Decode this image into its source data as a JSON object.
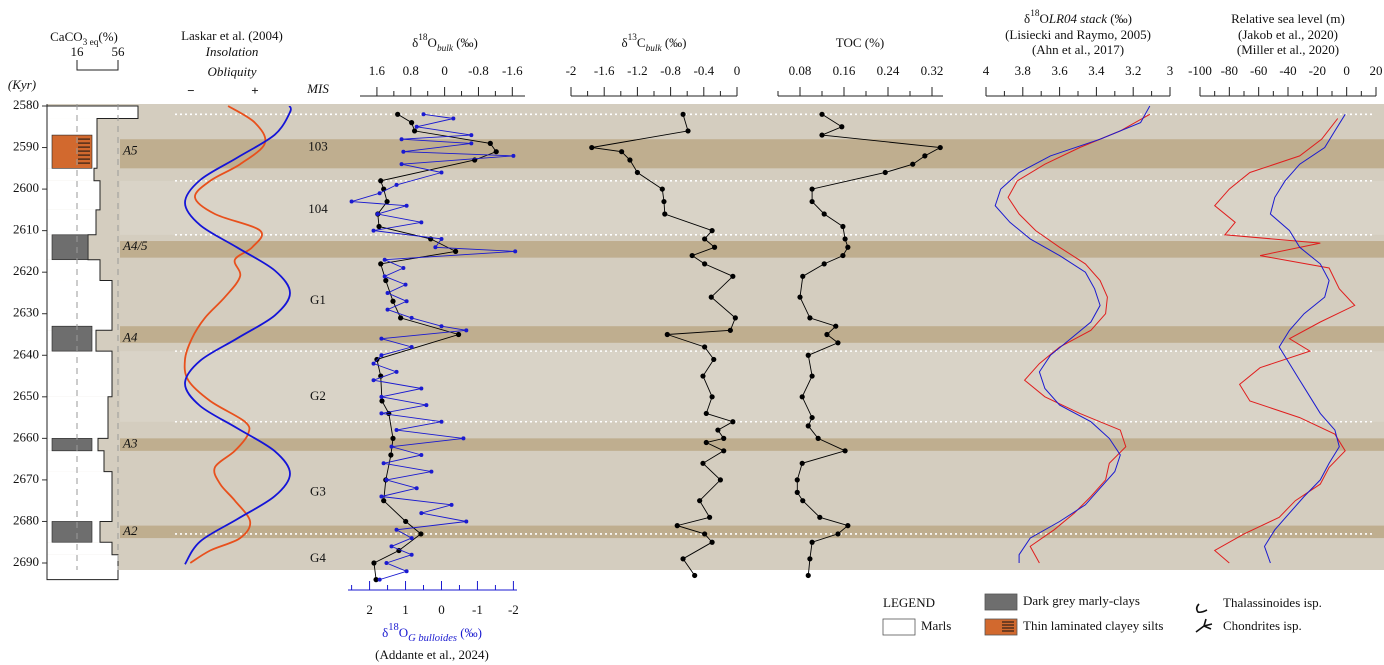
{
  "depth_axis": {
    "label": "(Kyr)",
    "ylim": [
      2580,
      2690
    ],
    "yticks": [
      2580,
      2590,
      2600,
      2610,
      2620,
      2630,
      2640,
      2650,
      2660,
      2670,
      2680,
      2690
    ]
  },
  "highlight_intervals": [
    [
      2588,
      2595
    ],
    [
      2612.5,
      2616.5
    ],
    [
      2633,
      2637
    ],
    [
      2660,
      2663
    ],
    [
      2681,
      2684
    ]
  ],
  "highlight_color": "#b8a37f",
  "mis": {
    "label": "MIS",
    "boundaries": [
      2582,
      2598,
      2611,
      2639,
      2656,
      2683
    ],
    "stages": [
      {
        "name": "103",
        "depth": 2590
      },
      {
        "name": "104",
        "depth": 2605
      },
      {
        "name": "G1",
        "depth": 2627
      },
      {
        "name": "G2",
        "depth": 2650
      },
      {
        "name": "G3",
        "depth": 2673
      },
      {
        "name": "G4",
        "depth": 2689
      }
    ]
  },
  "chart_data": [
    {
      "type": "lithology",
      "title": [
        {
          "text": "CaCO"
        },
        {
          "text": "3 eq",
          "style": "sub"
        },
        {
          "text": "(%)"
        }
      ],
      "xlim": [
        16,
        56
      ],
      "xticks": [
        16,
        56
      ],
      "depth_bins": [
        2580,
        2583,
        2595,
        2598,
        2605,
        2611,
        2617,
        2622,
        2634,
        2639,
        2650,
        2660,
        2663,
        2668,
        2680,
        2685,
        2688,
        2694
      ],
      "values": [
        75.5,
        35.5,
        32.6,
        38.4,
        34.5,
        26.7,
        38.4,
        50.1,
        34.5,
        50.1,
        46.2,
        36.5,
        42.3,
        50.1,
        38.4,
        50.1,
        56
      ],
      "dark_grey_layers": [
        {
          "from": 2611,
          "to": 2617,
          "label": "A4/5"
        },
        {
          "from": 2633,
          "to": 2639,
          "label": "A4"
        },
        {
          "from": 2660,
          "to": 2663,
          "label": "A3"
        },
        {
          "from": 2680,
          "to": 2685,
          "label": "A2"
        }
      ],
      "laminated_layers": [
        {
          "from": 2587,
          "to": 2595,
          "label": "A5"
        }
      ]
    },
    {
      "type": "orbital",
      "title": "Laskar et al. (2004)",
      "minus": "−",
      "plus": "+",
      "xlim": [
        -1,
        1
      ],
      "series": [
        {
          "name": "Insolation",
          "color": "#e8501c",
          "depth": [
            2580,
            2584,
            2589,
            2594,
            2598,
            2602,
            2606,
            2610,
            2614,
            2617,
            2621,
            2626,
            2631,
            2636,
            2641,
            2646,
            2651,
            2656,
            2659,
            2663,
            2667,
            2671,
            2675,
            2680,
            2684,
            2687,
            2690
          ],
          "values": [
            -0.18,
            0.33,
            0.52,
            0.05,
            -0.52,
            -0.81,
            -0.43,
            0.43,
            0.28,
            -0.05,
            0.05,
            -0.24,
            -0.62,
            -0.87,
            -1,
            -0.94,
            -0.52,
            0.14,
            0.2,
            -0.05,
            -0.43,
            -0.33,
            -0.05,
            0.24,
            0.05,
            -0.52,
            -0.9
          ]
        },
        {
          "name": "Obliquity",
          "color": "#1414d8",
          "depth": [
            2580,
            2581.5,
            2586.9,
            2592.4,
            2597.8,
            2603.3,
            2608.7,
            2614.1,
            2619.6,
            2625,
            2630.4,
            2635.9,
            2641.3,
            2646.8,
            2652.2,
            2657.6,
            2663.1,
            2668.5,
            2673.9,
            2679.4,
            2684.8,
            2690.3
          ],
          "values": [
            0.99,
            1,
            0.71,
            0,
            -0.71,
            -1,
            -0.71,
            0,
            0.71,
            1,
            0.71,
            0,
            -0.71,
            -1,
            -0.71,
            0,
            0.71,
            1,
            0.71,
            0,
            -0.71,
            -1
          ]
        }
      ]
    },
    {
      "type": "line",
      "title": [
        {
          "text": "δ"
        },
        {
          "text": "18",
          "style": "sup"
        },
        {
          "text": "O"
        },
        {
          "text": "bulk",
          "style": "sub",
          "italic": true
        },
        {
          "text": " (‰)"
        }
      ],
      "xlim": [
        2,
        -1.9
      ],
      "xticks": [
        1.6,
        0.8,
        0,
        -0.8,
        -1.6
      ],
      "xminorticks": [
        1.2,
        0.4,
        -0.4,
        -1.2
      ],
      "x2label": [
        {
          "text": "δ"
        },
        {
          "text": "18",
          "style": "sup"
        },
        {
          "text": "O"
        },
        {
          "text": "G bulloides",
          "style": "sub",
          "italic": true
        },
        {
          "text": " (‰)"
        }
      ],
      "x2lim": [
        2.6,
        -2.1
      ],
      "x2ticks": [
        2,
        1,
        0,
        -1,
        -2
      ],
      "x2minorticks": [
        2.5,
        1.5,
        0.5,
        -0.5,
        -1.5
      ],
      "series": [
        {
          "color": "#000000",
          "markers": true,
          "depth": [
            2582,
            2584,
            2586,
            2589,
            2591,
            2593,
            2598,
            2600,
            2603,
            2606,
            2609,
            2612,
            2615,
            2618,
            2622,
            2627,
            2631,
            2635,
            2641,
            2645,
            2651,
            2654,
            2660,
            2664,
            2670,
            2675,
            2680,
            2683,
            2687,
            2690,
            2694
          ],
          "values": [
            1.11,
            0.78,
            0.71,
            -1.08,
            -1.22,
            -0.71,
            1.51,
            1.44,
            1.36,
            1.58,
            1.55,
            0.33,
            -0.26,
            1.51,
            1.39,
            1.22,
            1.04,
            -0.33,
            1.6,
            1.51,
            1.48,
            1.32,
            1.22,
            1.27,
            1.39,
            1.44,
            0.92,
            0.56,
            1.08,
            1.67,
            1.62
          ]
        },
        {
          "name": "(Addante et al., 2024)",
          "color": "#1a1ad0",
          "markers": true,
          "axis": "x2",
          "depth": [
            2582,
            2583,
            2585,
            2587,
            2588,
            2589,
            2591,
            2592,
            2594,
            2596,
            2599,
            2601,
            2603,
            2604,
            2606,
            2608,
            2610,
            2612,
            2614,
            2615,
            2617,
            2619,
            2621,
            2623,
            2625,
            2627,
            2629,
            2631,
            2633,
            2634,
            2636,
            2638,
            2640,
            2642,
            2644,
            2646,
            2648,
            2650,
            2652,
            2654,
            2656,
            2658,
            2660,
            2662,
            2664,
            2666,
            2668,
            2670,
            2672,
            2674,
            2676,
            2678,
            2680,
            2682,
            2684,
            2686,
            2688,
            2690,
            2692,
            2694
          ],
          "values": [
            0.5,
            -0.33,
            0.69,
            -0.83,
            1.11,
            -0.83,
            1.06,
            -2.0,
            1.11,
            0,
            1.25,
            1.72,
            2.5,
            0.97,
            1.78,
            0.56,
            1.89,
            0,
            0.17,
            -2.05,
            1.58,
            1.06,
            1.58,
            1.0,
            1.5,
            0.97,
            1.5,
            0.83,
            0,
            -0.69,
            1.67,
            0.83,
            1.67,
            1.89,
            1.25,
            1.89,
            0.56,
            1.67,
            0.42,
            1.67,
            0,
            1.25,
            -0.61,
            1.39,
            0.56,
            1.61,
            0.28,
            1.53,
            0.69,
            1.67,
            -0.28,
            0.56,
            -0.69,
            1.25,
            0.83,
            1.39,
            0.83,
            1.53,
            0.97,
            1.72
          ]
        }
      ]
    },
    {
      "type": "line",
      "title": [
        {
          "text": "δ"
        },
        {
          "text": "13",
          "style": "sup"
        },
        {
          "text": "C"
        },
        {
          "text": "bulk",
          "style": "sub",
          "italic": true
        },
        {
          "text": " (‰)"
        }
      ],
      "xlim": [
        -2,
        0
      ],
      "xticks": [
        -2,
        -1.6,
        -1.2,
        -0.8,
        -0.4,
        0
      ],
      "xminorticks": [
        -1.8,
        -1.4,
        -1,
        -0.6,
        -0.2
      ],
      "series": [
        {
          "color": "#000000",
          "markers": true,
          "depth": [
            2582,
            2586,
            2590,
            2591,
            2593,
            2596,
            2600,
            2603,
            2606,
            2610,
            2612,
            2614,
            2616,
            2618,
            2621,
            2626,
            2631,
            2634,
            2635,
            2638,
            2641,
            2645,
            2650,
            2654,
            2656,
            2658,
            2660,
            2661,
            2663,
            2666,
            2670,
            2675,
            2679,
            2681,
            2683,
            2685,
            2689,
            2693
          ],
          "values": [
            -0.65,
            -0.59,
            -1.75,
            -1.39,
            -1.29,
            -1.2,
            -0.9,
            -0.88,
            -0.87,
            -0.3,
            -0.39,
            -0.27,
            -0.54,
            -0.39,
            -0.05,
            -0.31,
            -0.02,
            -0.08,
            -0.84,
            -0.39,
            -0.28,
            -0.41,
            -0.3,
            -0.37,
            -0.05,
            -0.23,
            -0.16,
            -0.37,
            -0.16,
            -0.41,
            -0.2,
            -0.45,
            -0.33,
            -0.72,
            -0.39,
            -0.3,
            -0.65,
            -0.51
          ]
        }
      ]
    },
    {
      "type": "line",
      "title": "TOC (%)",
      "xlim": [
        0.04,
        0.34
      ],
      "xticks": [
        0.08,
        0.16,
        0.24,
        0.32
      ],
      "xminorticks": [
        0.04,
        0.12,
        0.2,
        0.28
      ],
      "series": [
        {
          "color": "#000000",
          "markers": true,
          "depth": [
            2582,
            2585,
            2587,
            2590,
            2592,
            2594,
            2596,
            2600,
            2603,
            2606,
            2609,
            2612,
            2614,
            2616,
            2618,
            2621,
            2626,
            2631,
            2633,
            2635,
            2637,
            2640,
            2645,
            2650,
            2655,
            2657,
            2660,
            2663,
            2666,
            2670,
            2673,
            2675,
            2679,
            2681,
            2683,
            2685,
            2689,
            2693
          ],
          "values": [
            0.12,
            0.156,
            0.12,
            0.335,
            0.307,
            0.285,
            0.235,
            0.102,
            0.102,
            0.124,
            0.158,
            0.162,
            0.167,
            0.158,
            0.124,
            0.085,
            0.08,
            0.098,
            0.145,
            0.129,
            0.149,
            0.095,
            0.102,
            0.084,
            0.102,
            0.095,
            0.113,
            0.162,
            0.084,
            0.075,
            0.075,
            0.085,
            0.116,
            0.167,
            0.149,
            0.102,
            0.098,
            0.095
          ]
        }
      ]
    },
    {
      "type": "line",
      "title": [
        {
          "text": "δ"
        },
        {
          "text": "18",
          "style": "sup"
        },
        {
          "text": "O"
        },
        {
          "text": "LR04 stack",
          "italic": true
        },
        {
          "text": " (‰)"
        }
      ],
      "xlim": [
        4,
        3
      ],
      "xticks": [
        4,
        3.8,
        3.6,
        3.4,
        3.2,
        3
      ],
      "xminorticks": [
        3.9,
        3.7,
        3.5,
        3.3,
        3.1
      ],
      "series": [
        {
          "name": "(Lisiecki and Raymo, 2005)",
          "color": "#e01e1e",
          "markers": false,
          "depth": [
            2582,
            2586,
            2590,
            2594,
            2598,
            2602,
            2606,
            2610,
            2614,
            2618,
            2622,
            2626,
            2630,
            2634,
            2638,
            2642,
            2646,
            2650,
            2654,
            2658,
            2662,
            2666,
            2670,
            2674,
            2678,
            2682,
            2686,
            2690
          ],
          "values": [
            3.11,
            3.27,
            3.49,
            3.68,
            3.83,
            3.88,
            3.82,
            3.73,
            3.6,
            3.46,
            3.38,
            3.34,
            3.35,
            3.43,
            3.6,
            3.71,
            3.79,
            3.68,
            3.49,
            3.27,
            3.24,
            3.33,
            3.35,
            3.43,
            3.52,
            3.63,
            3.76,
            3.71
          ]
        },
        {
          "name": "(Ahn et al., 2017)",
          "color": "#1a1ad0",
          "markers": false,
          "depth": [
            2580,
            2584,
            2588,
            2592,
            2596,
            2600,
            2604,
            2608,
            2612,
            2616,
            2620,
            2624,
            2628,
            2632,
            2636,
            2640,
            2644,
            2648,
            2652,
            2656,
            2660,
            2664,
            2668,
            2672,
            2676,
            2680,
            2684,
            2688,
            2690
          ],
          "values": [
            3.11,
            3.16,
            3.38,
            3.65,
            3.82,
            3.92,
            3.95,
            3.87,
            3.76,
            3.6,
            3.46,
            3.41,
            3.38,
            3.43,
            3.54,
            3.65,
            3.71,
            3.68,
            3.6,
            3.43,
            3.33,
            3.27,
            3.3,
            3.38,
            3.46,
            3.6,
            3.76,
            3.82,
            3.82
          ]
        }
      ]
    },
    {
      "type": "line",
      "title": "Relative sea level (m)",
      "xlim": [
        -100,
        20
      ],
      "xticks": [
        -100,
        -80,
        -60,
        -40,
        -20,
        0,
        20
      ],
      "xminorticks": [
        -90,
        -70,
        -50,
        -30,
        -10,
        10
      ],
      "series": [
        {
          "name": "(Jakob et al., 2020)",
          "color": "#e01e1e",
          "markers": false,
          "depth": [
            2583,
            2588,
            2592,
            2596,
            2600,
            2604,
            2608,
            2611,
            2613,
            2616,
            2619,
            2624,
            2628,
            2632,
            2636,
            2639,
            2643,
            2647,
            2651,
            2655,
            2659,
            2663,
            2667,
            2671,
            2675,
            2679,
            2683,
            2687,
            2690
          ],
          "values": [
            -6.1,
            -17,
            -32,
            -66,
            -80,
            -90,
            -76,
            -83,
            -18,
            -59,
            -12,
            -5,
            5.5,
            -18,
            -39,
            -25,
            -59,
            -73,
            -66,
            -32,
            -8,
            -1,
            -12,
            -18,
            -35,
            -46,
            -70,
            -90,
            -80
          ]
        },
        {
          "name": "(Miller et al., 2020)",
          "color": "#1a1ad0",
          "markers": false,
          "depth": [
            2582,
            2586,
            2590,
            2594,
            2598,
            2602,
            2606,
            2610,
            2614,
            2618,
            2622,
            2626,
            2630,
            2634,
            2638,
            2642,
            2646,
            2650,
            2654,
            2658,
            2662,
            2666,
            2670,
            2674,
            2678,
            2682,
            2686,
            2690
          ],
          "values": [
            -1,
            -8,
            -15,
            -32,
            -42,
            -49,
            -52,
            -39,
            -32,
            -18,
            -12,
            -15,
            -29,
            -39,
            -46,
            -39,
            -32,
            -25,
            -18,
            -8,
            -5,
            -12,
            -18,
            -29,
            -39,
            -49,
            -56,
            -52
          ]
        }
      ]
    }
  ],
  "legend": {
    "title": "LEGEND",
    "items": [
      {
        "label": "Marls",
        "color": "#ffffff"
      },
      {
        "label": "Dark grey marly-clays",
        "color": "#6e6e6e"
      },
      {
        "label": "Thin laminated clayey silts",
        "color": "#d2692e"
      },
      {
        "label": "Thalassinoides isp."
      },
      {
        "label": "Chondrites isp."
      }
    ]
  }
}
